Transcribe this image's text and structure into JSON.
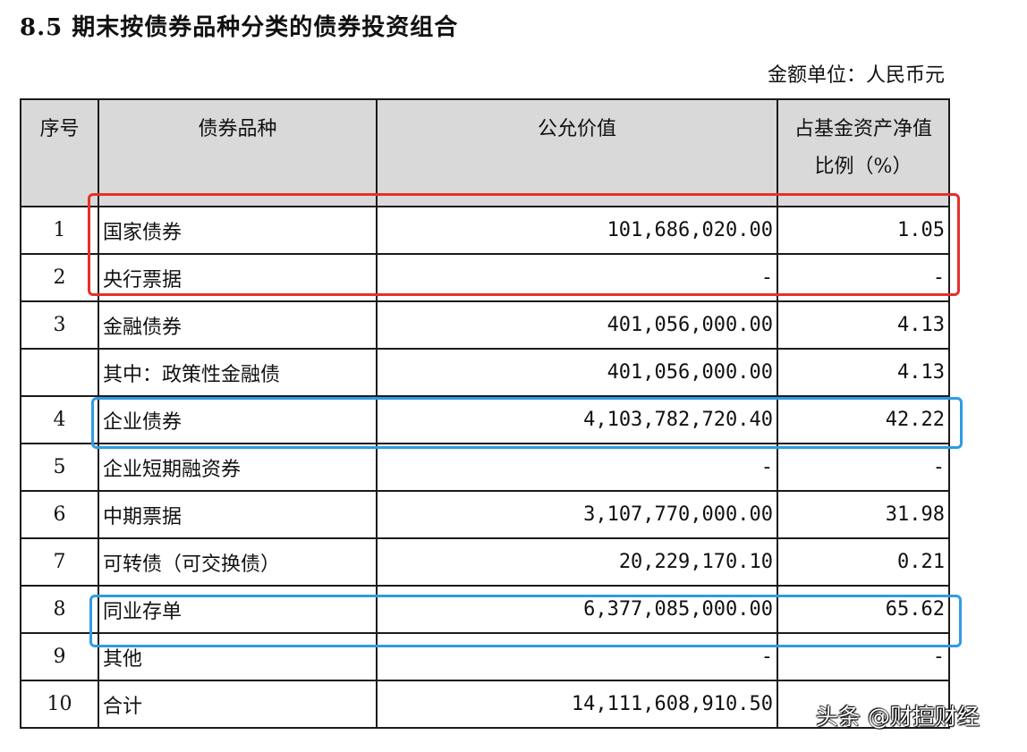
{
  "heading": "8.5 期末按债券品种分类的债券投资组合",
  "unit": "金额单位：人民币元",
  "table": {
    "headers": {
      "no": "序号",
      "type": "债券品种",
      "fair_value": "公允价值",
      "ratio_line1": "占基金资产净值",
      "ratio_line2": "比例（%）"
    },
    "rows": [
      {
        "no": "1",
        "name": "国家债券",
        "value": "101,686,020.00",
        "ratio": "1.05"
      },
      {
        "no": "2",
        "name": "央行票据",
        "value": "-",
        "ratio": "-"
      },
      {
        "no": "3",
        "name": "金融债券",
        "value": "401,056,000.00",
        "ratio": "4.13"
      },
      {
        "no": "",
        "name": "其中：政策性金融债",
        "value": "401,056,000.00",
        "ratio": "4.13"
      },
      {
        "no": "4",
        "name": "企业债券",
        "value": "4,103,782,720.40",
        "ratio": "42.22"
      },
      {
        "no": "5",
        "name": "企业短期融资券",
        "value": "-",
        "ratio": "-"
      },
      {
        "no": "6",
        "name": "中期票据",
        "value": "3,107,770,000.00",
        "ratio": "31.98"
      },
      {
        "no": "7",
        "name": "可转债（可交换债）",
        "value": "20,229,170.10",
        "ratio": "0.21"
      },
      {
        "no": "8",
        "name": "同业存单",
        "value": "6,377,085,000.00",
        "ratio": "65.62"
      },
      {
        "no": "9",
        "name": "其他",
        "value": "-",
        "ratio": "-"
      },
      {
        "no": "10",
        "name": "合计",
        "value": "14,111,608,910.50",
        "ratio": ""
      }
    ]
  },
  "highlights": {
    "red_color": "#e5302b",
    "blue_color": "#2f9be3"
  },
  "watermark": "头条 @财擅财经"
}
